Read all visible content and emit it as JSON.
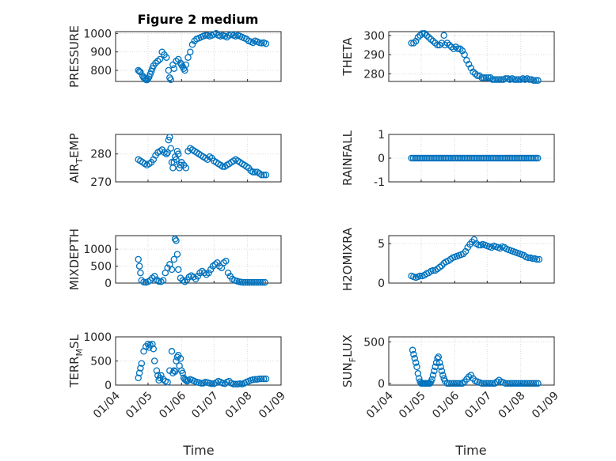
{
  "figure": {
    "title": "Figure 2 medium",
    "marker_color": "#0072BD",
    "x_ticks": [
      "01/04",
      "01/05",
      "01/06",
      "01/07",
      "01/08",
      "01/09"
    ],
    "x_label": "Time"
  },
  "chart_data": [
    {
      "type": "scatter",
      "ylabel": "PRESSURE",
      "ylim": [
        740,
        1010
      ],
      "yticks": [
        800,
        900,
        1000
      ],
      "xlim": [
        "01/04",
        "01/09"
      ],
      "grid": true,
      "x": [
        "04/22",
        "04/23",
        "04/24",
        "04/26",
        "04/27",
        "04/28",
        "04/29",
        "04/30",
        "05/01",
        "05/02",
        "05/03",
        "05/04",
        "05/05",
        "05/06",
        "05/08",
        "05/10",
        "05/12",
        "05/14",
        "05/16",
        "05/18",
        "05/20",
        "05/21",
        "05/22",
        "05/24",
        "05/25",
        "05/27",
        "05/29",
        "05/31",
        "06/01",
        "06/02",
        "06/03",
        "06/04",
        "06/05",
        "06/07",
        "06/09",
        "06/11",
        "06/13",
        "06/15",
        "06/17",
        "06/19",
        "06/21",
        "06/23",
        "06/25",
        "06/27",
        "06/29",
        "07/01",
        "07/03",
        "07/05",
        "07/07",
        "07/09",
        "07/11",
        "07/13",
        "07/15",
        "07/17",
        "07/19",
        "07/21",
        "07/23",
        "07/25",
        "07/27",
        "07/29",
        "07/31",
        "08/02",
        "08/04",
        "08/06",
        "08/08",
        "08/10",
        "08/12",
        "08/14",
        "08/16",
        "08/18"
      ],
      "y": [
        800,
        795,
        790,
        770,
        760,
        755,
        750,
        748,
        755,
        765,
        780,
        795,
        810,
        825,
        840,
        850,
        860,
        900,
        885,
        870,
        800,
        760,
        750,
        830,
        810,
        850,
        860,
        840,
        830,
        820,
        810,
        800,
        830,
        870,
        900,
        940,
        960,
        970,
        975,
        980,
        985,
        990,
        990,
        985,
        990,
        995,
        1000,
        990,
        985,
        990,
        985,
        980,
        990,
        995,
        990,
        985,
        990,
        985,
        980,
        975,
        970,
        960,
        955,
        950,
        960,
        955,
        950,
        948,
        950,
        945
      ]
    },
    {
      "type": "scatter",
      "ylabel": "THETA",
      "ylim": [
        276,
        302
      ],
      "yticks": [
        280,
        290,
        300
      ],
      "xlim": [
        "01/04",
        "01/09"
      ],
      "grid": true,
      "x": [
        "04/22",
        "04/24",
        "04/26",
        "04/28",
        "04/30",
        "05/02",
        "05/04",
        "05/06",
        "05/08",
        "05/10",
        "05/12",
        "05/14",
        "05/16",
        "05/18",
        "05/20",
        "05/22",
        "05/23",
        "05/25",
        "05/27",
        "05/29",
        "05/31",
        "06/02",
        "06/04",
        "06/06",
        "06/08",
        "06/10",
        "06/12",
        "06/14",
        "06/16",
        "06/18",
        "06/20",
        "06/22",
        "06/24",
        "06/26",
        "06/28",
        "06/30",
        "07/02",
        "07/04",
        "07/06",
        "07/08",
        "07/10",
        "07/12",
        "07/14",
        "07/16",
        "07/18",
        "07/20",
        "07/22",
        "07/24",
        "07/26",
        "07/28",
        "07/30",
        "08/01",
        "08/03",
        "08/05",
        "08/07",
        "08/09",
        "08/11",
        "08/13",
        "08/15",
        "08/17"
      ],
      "y": [
        296,
        296,
        297,
        299,
        300,
        301,
        301,
        300,
        299,
        298,
        297,
        296,
        295,
        295,
        296,
        300,
        295,
        296,
        295,
        294,
        293,
        294,
        293,
        293,
        292,
        290,
        287,
        285,
        283,
        281,
        280,
        279,
        279,
        278,
        278,
        278,
        278,
        278,
        277,
        277,
        277,
        277,
        277,
        277,
        277.5,
        277.5,
        277,
        277.5,
        277,
        277,
        277,
        277,
        277.5,
        277,
        277.5,
        277,
        277,
        276.5,
        276.5,
        276.5
      ]
    },
    {
      "type": "scatter",
      "ylabel": "AIR_TEMP",
      "ylim": [
        270,
        287
      ],
      "yticks": [
        270,
        280
      ],
      "xlim": [
        "01/04",
        "01/09"
      ],
      "grid": true,
      "x": [
        "04/22",
        "04/24",
        "04/26",
        "04/28",
        "04/30",
        "05/02",
        "05/04",
        "05/06",
        "05/08",
        "05/10",
        "05/12",
        "05/14",
        "05/16",
        "05/18",
        "05/19",
        "05/20",
        "05/21",
        "05/22",
        "05/23",
        "05/24",
        "05/25",
        "05/26",
        "05/27",
        "05/28",
        "05/29",
        "05/30",
        "05/31",
        "06/01",
        "06/03",
        "06/05",
        "06/07",
        "06/09",
        "06/11",
        "06/13",
        "06/15",
        "06/17",
        "06/19",
        "06/21",
        "06/23",
        "06/25",
        "06/27",
        "06/29",
        "07/01",
        "07/03",
        "07/05",
        "07/07",
        "07/09",
        "07/11",
        "07/13",
        "07/15",
        "07/17",
        "07/19",
        "07/21",
        "07/23",
        "07/25",
        "07/27",
        "07/29",
        "07/31",
        "08/02",
        "08/04",
        "08/06",
        "08/08",
        "08/10",
        "08/12",
        "08/14",
        "08/16",
        "08/18"
      ],
      "y": [
        278,
        277.5,
        277,
        276.5,
        276,
        276.5,
        277,
        278,
        279.5,
        280.5,
        281,
        281.5,
        280.5,
        280,
        280.5,
        285,
        286,
        282,
        277,
        275,
        277,
        279,
        278,
        281,
        280,
        275,
        276,
        277,
        276,
        275,
        281,
        282,
        281.5,
        281,
        280.5,
        280,
        279.5,
        279,
        278.5,
        278,
        279,
        278.5,
        277.5,
        277,
        276.5,
        276,
        275.5,
        275.5,
        276,
        276.5,
        277,
        277.5,
        278,
        277.5,
        277,
        276.5,
        276,
        275.5,
        275,
        274,
        273.5,
        273.5,
        273.5,
        273,
        272.5,
        272.5,
        272.5
      ]
    },
    {
      "type": "scatter",
      "ylabel": "RAINFALL",
      "ylim": [
        -1,
        1
      ],
      "yticks": [
        -1,
        0,
        1
      ],
      "xlim": [
        "01/04",
        "01/09"
      ],
      "grid": true,
      "x_range": [
        "04/22",
        "08/18"
      ],
      "y_constant": 0
    },
    {
      "type": "scatter",
      "ylabel": "MIXDEPTH",
      "ylim": [
        0,
        1400
      ],
      "yticks": [
        0,
        500,
        1000
      ],
      "xlim": [
        "01/04",
        "01/09"
      ],
      "grid": true,
      "x": [
        "04/22",
        "04/23",
        "04/24",
        "04/25",
        "04/27",
        "04/29",
        "05/01",
        "05/03",
        "05/05",
        "05/07",
        "05/09",
        "05/11",
        "05/13",
        "05/15",
        "05/17",
        "05/19",
        "05/21",
        "05/23",
        "05/25",
        "05/26",
        "05/27",
        "05/28",
        "05/29",
        "05/31",
        "06/02",
        "06/04",
        "06/06",
        "06/08",
        "06/10",
        "06/12",
        "06/14",
        "06/16",
        "06/18",
        "06/20",
        "06/22",
        "06/24",
        "06/26",
        "06/28",
        "06/30",
        "07/02",
        "07/04",
        "07/06",
        "07/08",
        "07/10",
        "07/12",
        "07/14",
        "07/16",
        "07/18",
        "07/20",
        "07/22",
        "07/24",
        "07/26",
        "07/28",
        "07/30",
        "08/01",
        "08/03",
        "08/05",
        "08/07",
        "08/09",
        "08/11",
        "08/13",
        "08/15",
        "08/17"
      ],
      "y": [
        700,
        500,
        300,
        80,
        30,
        20,
        40,
        80,
        150,
        200,
        100,
        50,
        40,
        80,
        300,
        450,
        550,
        400,
        700,
        1300,
        1250,
        850,
        400,
        150,
        80,
        40,
        100,
        180,
        220,
        180,
        120,
        200,
        300,
        350,
        300,
        250,
        300,
        400,
        500,
        550,
        600,
        500,
        450,
        600,
        650,
        300,
        200,
        120,
        80,
        60,
        40,
        30,
        20,
        20,
        20,
        20,
        20,
        20,
        20,
        20,
        20,
        20,
        20
      ]
    },
    {
      "type": "scatter",
      "ylabel": "H2OMIXRA",
      "ylim": [
        0,
        6
      ],
      "yticks": [
        0,
        5
      ],
      "xlim": [
        "01/04",
        "01/09"
      ],
      "grid": true,
      "x": [
        "04/22",
        "04/24",
        "04/26",
        "04/28",
        "04/30",
        "05/02",
        "05/04",
        "05/06",
        "05/08",
        "05/10",
        "05/12",
        "05/14",
        "05/16",
        "05/18",
        "05/20",
        "05/22",
        "05/24",
        "05/26",
        "05/28",
        "05/30",
        "06/01",
        "06/03",
        "06/05",
        "06/07",
        "06/09",
        "06/11",
        "06/13",
        "06/15",
        "06/17",
        "06/19",
        "06/21",
        "06/23",
        "06/25",
        "06/27",
        "06/29",
        "07/01",
        "07/03",
        "07/05",
        "07/07",
        "07/09",
        "07/11",
        "07/13",
        "07/15",
        "07/17",
        "07/19",
        "07/21",
        "07/23",
        "07/25",
        "07/27",
        "07/29",
        "07/31",
        "08/02",
        "08/04",
        "08/06",
        "08/08",
        "08/10",
        "08/12",
        "08/14",
        "08/16",
        "08/18"
      ],
      "y": [
        0.9,
        0.8,
        0.7,
        0.8,
        0.9,
        0.9,
        1.0,
        1.2,
        1.3,
        1.5,
        1.6,
        1.6,
        1.8,
        2.0,
        2.2,
        2.5,
        2.7,
        2.8,
        3.0,
        3.2,
        3.3,
        3.4,
        3.5,
        3.6,
        3.7,
        4.0,
        4.5,
        4.9,
        5.2,
        5.5,
        5.0,
        4.8,
        4.8,
        4.9,
        4.8,
        4.7,
        4.6,
        4.5,
        4.7,
        4.6,
        4.5,
        4.4,
        4.6,
        4.5,
        4.3,
        4.2,
        4.1,
        4.0,
        3.9,
        3.8,
        3.7,
        3.6,
        3.5,
        3.3,
        3.2,
        3.2,
        3.1,
        3.1,
        3.0,
        3.0
      ]
    },
    {
      "type": "scatter",
      "ylabel": "TERR_MSL",
      "ylim": [
        0,
        1000
      ],
      "yticks": [
        0,
        500,
        1000
      ],
      "xlim": [
        "01/04",
        "01/09"
      ],
      "grid": true,
      "x": [
        "04/22",
        "04/23",
        "04/24",
        "04/25",
        "04/27",
        "04/29",
        "05/01",
        "05/02",
        "05/03",
        "05/05",
        "05/06",
        "05/07",
        "05/09",
        "05/10",
        "05/11",
        "05/12",
        "05/13",
        "05/15",
        "05/17",
        "05/19",
        "05/21",
        "05/23",
        "05/24",
        "05/25",
        "05/26",
        "05/27",
        "05/28",
        "05/29",
        "05/30",
        "05/31",
        "06/01",
        "06/02",
        "06/03",
        "06/04",
        "06/05",
        "06/06",
        "06/07",
        "06/09",
        "06/11",
        "06/13",
        "06/15",
        "06/17",
        "06/19",
        "06/21",
        "06/23",
        "06/25",
        "06/27",
        "06/29",
        "07/01",
        "07/03",
        "07/05",
        "07/07",
        "07/09",
        "07/11",
        "07/13",
        "07/15",
        "07/17",
        "07/19",
        "07/21",
        "07/23",
        "07/25",
        "07/27",
        "07/29",
        "07/31",
        "08/02",
        "08/04",
        "08/06",
        "08/08",
        "08/10",
        "08/12",
        "08/14",
        "08/16",
        "08/18"
      ],
      "y": [
        150,
        250,
        350,
        450,
        700,
        800,
        850,
        780,
        830,
        850,
        750,
        500,
        300,
        200,
        100,
        150,
        200,
        120,
        80,
        60,
        300,
        700,
        250,
        300,
        280,
        500,
        580,
        620,
        400,
        550,
        300,
        250,
        150,
        120,
        100,
        80,
        100,
        120,
        100,
        80,
        60,
        50,
        40,
        40,
        60,
        50,
        40,
        30,
        30,
        50,
        80,
        60,
        40,
        30,
        60,
        80,
        40,
        20,
        20,
        20,
        30,
        20,
        40,
        60,
        80,
        100,
        110,
        120,
        120,
        130,
        130,
        130,
        130
      ]
    },
    {
      "type": "scatter",
      "ylabel": "SUN_FLUX",
      "ylim": [
        -20,
        560
      ],
      "yticks": [
        0,
        500
      ],
      "xlim": [
        "01/04",
        "01/09"
      ],
      "grid": true,
      "x": [
        "04/23",
        "04/24",
        "04/25",
        "04/26",
        "04/27",
        "04/28",
        "04/29",
        "04/30",
        "05/01",
        "05/02",
        "05/03",
        "05/04",
        "05/05",
        "05/06",
        "05/07",
        "05/08",
        "05/09",
        "05/10",
        "05/11",
        "05/12",
        "05/13",
        "05/14",
        "05/15",
        "05/16",
        "05/17",
        "05/18",
        "05/19",
        "05/20",
        "05/21",
        "05/22",
        "05/23",
        "05/25",
        "05/27",
        "05/29",
        "05/31",
        "06/02",
        "06/04",
        "06/06",
        "06/08",
        "06/10",
        "06/12",
        "06/14",
        "06/16",
        "06/18",
        "06/20",
        "06/22",
        "06/24",
        "06/26",
        "06/28",
        "06/30",
        "07/02",
        "07/04",
        "07/06",
        "07/08",
        "07/10",
        "07/12",
        "07/14",
        "07/16",
        "07/18",
        "07/20",
        "07/22",
        "07/24",
        "07/26",
        "07/28",
        "07/30",
        "08/01",
        "08/03",
        "08/05",
        "08/07",
        "08/09",
        "08/11",
        "08/13",
        "08/15",
        "08/17"
      ],
      "y": [
        400,
        350,
        300,
        250,
        200,
        120,
        60,
        20,
        0,
        0,
        0,
        0,
        0,
        0,
        0,
        0,
        0,
        20,
        50,
        100,
        150,
        200,
        250,
        300,
        320,
        250,
        200,
        150,
        100,
        60,
        30,
        0,
        0,
        0,
        0,
        0,
        0,
        0,
        0,
        20,
        50,
        80,
        100,
        60,
        30,
        20,
        10,
        0,
        0,
        0,
        0,
        0,
        0,
        0,
        20,
        40,
        20,
        10,
        0,
        0,
        0,
        0,
        0,
        0,
        0,
        0,
        0,
        0,
        0,
        0,
        0,
        0,
        0,
        0
      ]
    }
  ]
}
